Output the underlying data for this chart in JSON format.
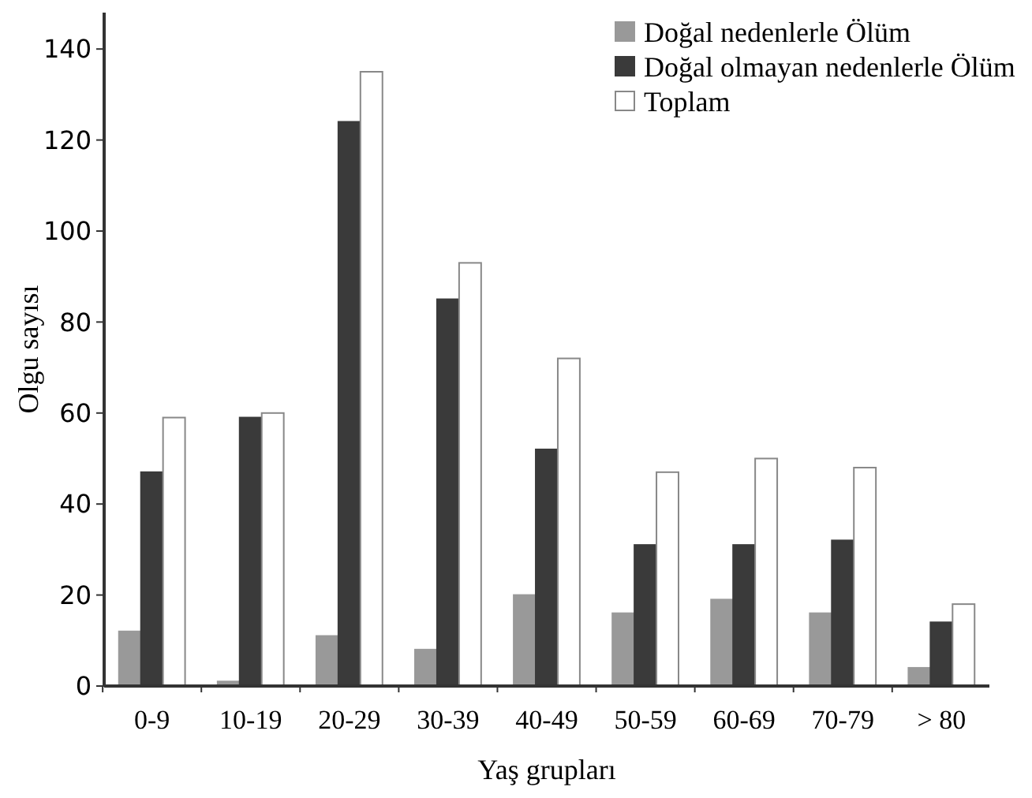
{
  "chart_data": {
    "type": "bar",
    "xlabel": "Yaş grupları",
    "ylabel": "Olgu sayısı",
    "categories": [
      "0-9",
      "10-19",
      "20-29",
      "30-39",
      "40-49",
      "50-59",
      "60-69",
      "70-79",
      "> 80"
    ],
    "series": [
      {
        "name": "Doğal nedenlerle Ölüm",
        "color": "#999999",
        "values": [
          12,
          1,
          11,
          8,
          20,
          16,
          19,
          16,
          4
        ]
      },
      {
        "name": "Doğal olmayan nedenlerle Ölüm",
        "color": "#3a3a3a",
        "values": [
          47,
          59,
          124,
          85,
          52,
          31,
          31,
          32,
          14
        ]
      },
      {
        "name": "Toplam",
        "color": "#ffffff",
        "values": [
          59,
          60,
          135,
          93,
          72,
          47,
          50,
          48,
          18
        ]
      }
    ],
    "ylim": [
      0,
      148
    ],
    "yticks": [
      0,
      20,
      40,
      60,
      80,
      100,
      120,
      140
    ],
    "grid": false,
    "legend": "top right"
  }
}
